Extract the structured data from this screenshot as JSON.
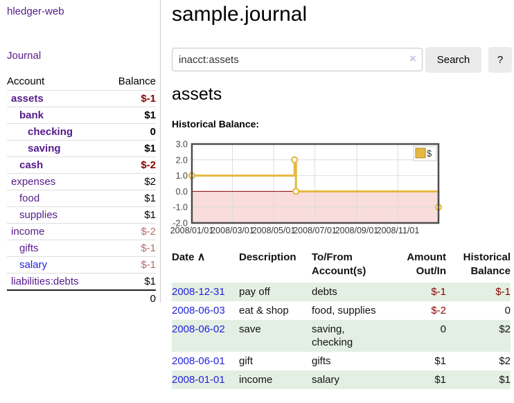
{
  "app": {
    "brand": "hledger-web",
    "nav_journal": "Journal"
  },
  "sidebar": {
    "headers": {
      "account": "Account",
      "balance": "Balance"
    },
    "accounts": [
      {
        "name": "assets",
        "indent": 0,
        "bold": true,
        "balance": "$-1",
        "balance_style": "neg"
      },
      {
        "name": "bank",
        "indent": 1,
        "bold": true,
        "balance": "$1",
        "balance_style": "pos"
      },
      {
        "name": "checking",
        "indent": 2,
        "bold": true,
        "balance": "0",
        "balance_style": "pos"
      },
      {
        "name": "saving",
        "indent": 2,
        "bold": true,
        "balance": "$1",
        "balance_style": "pos"
      },
      {
        "name": "cash",
        "indent": 1,
        "bold": true,
        "balance": "$-2",
        "balance_style": "neg"
      },
      {
        "name": "expenses",
        "indent": 0,
        "bold": false,
        "balance": "$2",
        "balance_style": "pos"
      },
      {
        "name": "food",
        "indent": 1,
        "bold": false,
        "balance": "$1",
        "balance_style": "pos"
      },
      {
        "name": "supplies",
        "indent": 1,
        "bold": false,
        "balance": "$1",
        "balance_style": "pos"
      },
      {
        "name": "income",
        "indent": 0,
        "bold": false,
        "balance": "$-2",
        "balance_style": "neg-faded"
      },
      {
        "name": "gifts",
        "indent": 1,
        "bold": false,
        "balance": "$-1",
        "balance_style": "neg-faded"
      },
      {
        "name": "salary",
        "indent": 1,
        "bold": false,
        "link_color": "blue",
        "balance": "$-1",
        "balance_style": "neg-faded"
      },
      {
        "name": "liabilities:debts",
        "indent": 0,
        "bold": false,
        "balance": "$1",
        "balance_style": "pos"
      }
    ],
    "total": "0"
  },
  "header": {
    "title": "sample.journal"
  },
  "search": {
    "value": "inacct:assets",
    "clear_icon": "×",
    "button": "Search",
    "help_button": "?"
  },
  "register": {
    "heading": "assets",
    "chart_label": "Historical Balance:"
  },
  "chart_data": {
    "type": "line",
    "title": "Historical Balance",
    "series": [
      {
        "name": "$",
        "color": "#e5b840",
        "step": "after",
        "points": [
          {
            "date": "2008-01-01",
            "day": 0,
            "value": 1
          },
          {
            "date": "2008-06-01",
            "day": 152,
            "value": 2
          },
          {
            "date": "2008-06-03",
            "day": 154,
            "value": 0
          },
          {
            "date": "2008-12-31",
            "day": 365,
            "value": -1
          }
        ]
      }
    ],
    "x_tick_labels": [
      "2008/01/01",
      "2008/03/01",
      "2008/05/01",
      "2008/07/01",
      "2008/09/01",
      "2008/11/01"
    ],
    "x_tick_days": [
      0,
      60,
      121,
      182,
      244,
      305
    ],
    "x_range_days": [
      0,
      365
    ],
    "y_ticks": [
      3.0,
      2.0,
      1.0,
      0.0,
      -1.0,
      -2.0
    ],
    "ylim": [
      -2,
      3
    ],
    "grid": true,
    "legend": {
      "label": "$",
      "swatch_color": "#e5b840",
      "position": "top-right"
    },
    "negative_region_color": "#f9dcdc",
    "zero_line_color": "#8b0000",
    "grid_color": "#ddd",
    "border_color": "#4d4d4d"
  },
  "table": {
    "headers": {
      "date": "Date",
      "sort_icon": "∧",
      "description": "Description",
      "tofrom": "To/From\nAccount(s)",
      "amount": "Amount\nOut/In",
      "historical": "Historical\nBalance"
    },
    "rows": [
      {
        "date": "2008-12-31",
        "description": "pay off",
        "accounts": "debts",
        "amount": "$-1",
        "amount_neg": true,
        "balance": "$-1",
        "balance_neg": true,
        "shade": true
      },
      {
        "date": "2008-06-03",
        "description": "eat & shop",
        "accounts": "food, supplies",
        "amount": "$-2",
        "amount_neg": true,
        "balance": "0",
        "balance_neg": false,
        "shade": false
      },
      {
        "date": "2008-06-02",
        "description": "save",
        "accounts": "saving,\nchecking",
        "amount": "0",
        "amount_neg": false,
        "balance": "$2",
        "balance_neg": false,
        "shade": true
      },
      {
        "date": "2008-06-01",
        "description": "gift",
        "accounts": "gifts",
        "amount": "$1",
        "amount_neg": false,
        "balance": "$2",
        "balance_neg": false,
        "shade": false
      },
      {
        "date": "2008-01-01",
        "description": "income",
        "accounts": "salary",
        "amount": "$1",
        "amount_neg": false,
        "balance": "$1",
        "balance_neg": false,
        "shade": true
      }
    ]
  }
}
